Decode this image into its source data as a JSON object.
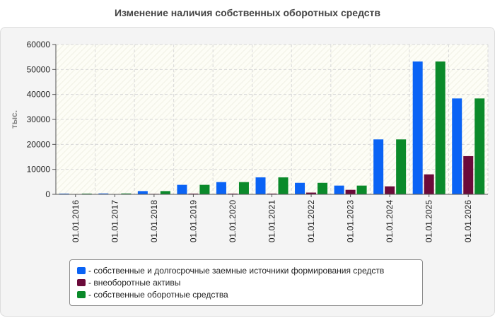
{
  "chart_data": {
    "type": "bar",
    "title": "Изменение наличия собственных оборотных средств",
    "ylabel": "тыс.",
    "ylim": [
      0,
      60000
    ],
    "yticks": [
      0,
      10000,
      20000,
      30000,
      40000,
      50000,
      60000
    ],
    "grid": true,
    "legend_position": "bottom",
    "categories": [
      "01.01.2016",
      "01.01.2017",
      "01.01.2018",
      "01.01.2019",
      "01.01.2020",
      "01.01.2021",
      "01.01.2022",
      "01.01.2023",
      "01.01.2024",
      "01.01.2025",
      "01.01.2026"
    ],
    "series": [
      {
        "name": "- собственные и долгосрочные заемные источники формирования средств",
        "color": "#0a63f5",
        "values": [
          300,
          350,
          1300,
          3800,
          4900,
          6800,
          4600,
          3500,
          22000,
          53200,
          38400
        ]
      },
      {
        "name": "- внеоборотные активы",
        "color": "#6b0a3a",
        "values": [
          100,
          100,
          200,
          300,
          300,
          300,
          700,
          1800,
          3200,
          8000,
          15300
        ]
      },
      {
        "name": "- собственные оборотные средства",
        "color": "#0a8a2a",
        "values": [
          300,
          350,
          1300,
          3800,
          4900,
          6800,
          4600,
          3500,
          22000,
          53200,
          38400
        ]
      }
    ]
  }
}
